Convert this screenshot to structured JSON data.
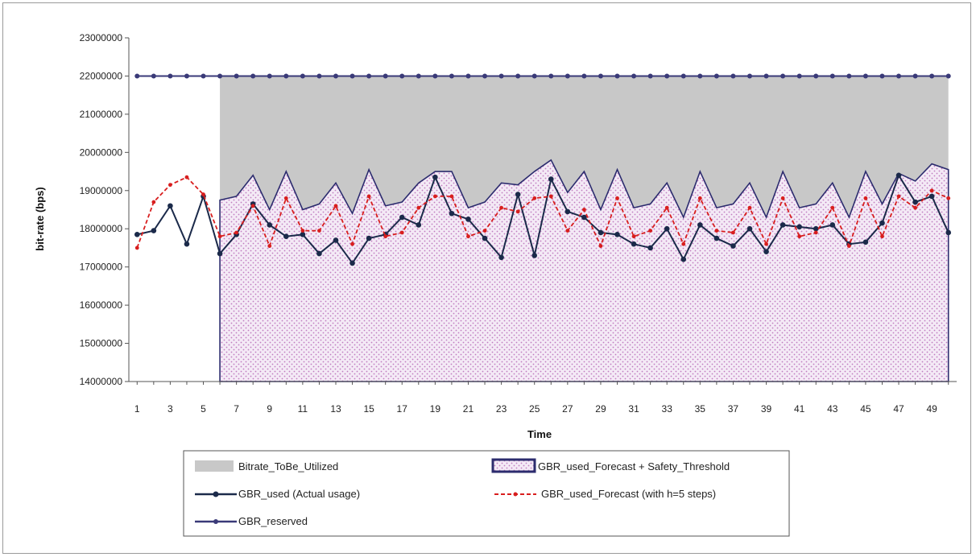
{
  "chart_data": {
    "type": "line",
    "xlabel": "Time",
    "ylabel": "bit-rate (bps)",
    "ylim": [
      14000000,
      23000000
    ],
    "yticks": [
      14000000,
      15000000,
      16000000,
      17000000,
      18000000,
      19000000,
      20000000,
      21000000,
      22000000,
      23000000
    ],
    "ytick_labels": [
      "14000000",
      "15000000",
      "16000000",
      "17000000",
      "18000000",
      "19000000",
      "20000000",
      "21000000",
      "22000000",
      "23000000"
    ],
    "xlim": [
      1,
      50
    ],
    "xticks": [
      1,
      3,
      5,
      7,
      9,
      11,
      13,
      15,
      17,
      19,
      21,
      23,
      25,
      27,
      29,
      31,
      33,
      35,
      37,
      39,
      41,
      43,
      45,
      47,
      49
    ],
    "xtick_labels": [
      "1",
      "3",
      "5",
      "7",
      "9",
      "11",
      "13",
      "15",
      "17",
      "19",
      "21",
      "23",
      "25",
      "27",
      "29",
      "31",
      "33",
      "35",
      "37",
      "39",
      "41",
      "43",
      "45",
      "47",
      "49"
    ],
    "grid": false,
    "legend_position": "bottom",
    "x": [
      1,
      2,
      3,
      4,
      5,
      6,
      7,
      8,
      9,
      10,
      11,
      12,
      13,
      14,
      15,
      16,
      17,
      18,
      19,
      20,
      21,
      22,
      23,
      24,
      25,
      26,
      27,
      28,
      29,
      30,
      31,
      32,
      33,
      34,
      35,
      36,
      37,
      38,
      39,
      40,
      41,
      42,
      43,
      44,
      45,
      46,
      47,
      48,
      49,
      50
    ],
    "series": [
      {
        "name": "Bitrate_ToBe_Utilized",
        "kind": "area-band",
        "color": "#c8c8c8",
        "x_start": 6,
        "x_end": 50,
        "upper": 22000000
      },
      {
        "name": "GBR_used_Forecast + Safety_Threshold",
        "kind": "area",
        "color": "#2c2c6e",
        "fill_pattern": "pink-dots",
        "x_start": 6,
        "values": [
          null,
          null,
          null,
          null,
          null,
          18750000,
          18850000,
          19400000,
          18500000,
          19500000,
          18500000,
          18650000,
          19200000,
          18400000,
          19550000,
          18600000,
          18700000,
          19200000,
          19500000,
          19500000,
          18550000,
          18700000,
          19200000,
          19150000,
          19500000,
          19800000,
          18950000,
          19500000,
          18500000,
          19550000,
          18550000,
          18650000,
          19200000,
          18300000,
          19500000,
          18550000,
          18650000,
          19200000,
          18300000,
          19500000,
          18550000,
          18650000,
          19200000,
          18300000,
          19500000,
          18650000,
          19450000,
          19250000,
          19700000,
          19550000
        ]
      },
      {
        "name": "GBR_used (Actual usage)",
        "kind": "line",
        "color": "#1b2a4a",
        "values": [
          17850000,
          17950000,
          18600000,
          17600000,
          18850000,
          17350000,
          17850000,
          18650000,
          18100000,
          17800000,
          17850000,
          17350000,
          17700000,
          17100000,
          17750000,
          17850000,
          18300000,
          18100000,
          19350000,
          18400000,
          18250000,
          17750000,
          17250000,
          18900000,
          17300000,
          19300000,
          18450000,
          18300000,
          17900000,
          17850000,
          17600000,
          17500000,
          18000000,
          17200000,
          18100000,
          17750000,
          17550000,
          18000000,
          17400000,
          18100000,
          18050000,
          18000000,
          18100000,
          17600000,
          17650000,
          18150000,
          19400000,
          18700000,
          18850000,
          17900000
        ]
      },
      {
        "name": "GBR_used_Forecast  (with h=5 steps)",
        "kind": "line",
        "color": "#d81e1e",
        "dashed": true,
        "values": [
          17500000,
          18700000,
          19150000,
          19350000,
          18900000,
          17800000,
          17900000,
          18600000,
          17550000,
          18800000,
          17950000,
          17950000,
          18600000,
          17600000,
          18850000,
          17800000,
          17900000,
          18550000,
          18850000,
          18850000,
          17800000,
          17950000,
          18550000,
          18450000,
          18800000,
          18850000,
          17950000,
          18500000,
          17550000,
          18800000,
          17800000,
          17950000,
          18550000,
          17600000,
          18800000,
          17950000,
          17900000,
          18550000,
          17600000,
          18800000,
          17800000,
          17900000,
          18550000,
          17550000,
          18800000,
          17800000,
          18850000,
          18550000,
          19000000,
          18800000
        ]
      },
      {
        "name": "GBR_reserved",
        "kind": "line",
        "color": "#3a3a78",
        "values": [
          22000000,
          22000000,
          22000000,
          22000000,
          22000000,
          22000000,
          22000000,
          22000000,
          22000000,
          22000000,
          22000000,
          22000000,
          22000000,
          22000000,
          22000000,
          22000000,
          22000000,
          22000000,
          22000000,
          22000000,
          22000000,
          22000000,
          22000000,
          22000000,
          22000000,
          22000000,
          22000000,
          22000000,
          22000000,
          22000000,
          22000000,
          22000000,
          22000000,
          22000000,
          22000000,
          22000000,
          22000000,
          22000000,
          22000000,
          22000000,
          22000000,
          22000000,
          22000000,
          22000000,
          22000000,
          22000000,
          22000000,
          22000000,
          22000000,
          22000000
        ]
      }
    ]
  },
  "legend": {
    "items": [
      {
        "label": "Bitrate_ToBe_Utilized"
      },
      {
        "label": "GBR_used_Forecast + Safety_Threshold"
      },
      {
        "label": "GBR_used (Actual usage)"
      },
      {
        "label": "GBR_used_Forecast  (with h=5 steps)"
      },
      {
        "label": "GBR_reserved"
      }
    ]
  }
}
